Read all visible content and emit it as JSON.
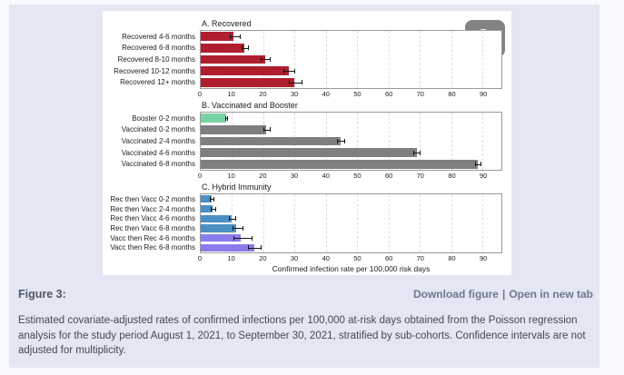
{
  "figure": {
    "label": "Figure 3:",
    "actions": {
      "download": "Download figure",
      "separator": "|",
      "open": "Open in new tab"
    },
    "caption": "Estimated covariate-adjusted rates of confirmed infections per 100,000 at-risk days obtained from the Poisson regression analysis for the study period August 1, 2021, to September 30, 2021, stratified by sub-cohorts. Confidence intervals are not adjusted for multiplicity.",
    "zoom_button_icon": "magnifier-plus-icon"
  },
  "colors": {
    "page_background": "#f8f9fd",
    "section_background": "#e4e7f3",
    "figure_background": "#ffffff",
    "recovered_red": "#b01e2e",
    "vaccinated_gray": "#7f7f7f",
    "booster_green": "#79d2a2",
    "rec_then_vacc_blue": "#4a90c4",
    "vacc_then_rec_purple": "#8b7cec",
    "error_bar": "#151515",
    "link_text": "#6d7890"
  },
  "chart_data": [
    {
      "type": "bar",
      "orientation": "horizontal",
      "title": "A. Recovered",
      "xlabel": "",
      "xlim": [
        0,
        96
      ],
      "xticks": [
        0,
        10,
        20,
        30,
        40,
        50,
        60,
        70,
        80,
        90
      ],
      "grid": "vertical-dashed",
      "categories": [
        "Recovered 4-6 months",
        "Recovered 6-8 months",
        "Recovered 8-10 months",
        "Recovered 10-12 months",
        "Recovered 12+ months"
      ],
      "values": [
        10.5,
        14.0,
        20.5,
        28.0,
        30.0
      ],
      "ci_low": [
        9.2,
        13.0,
        19.0,
        26.5,
        28.2
      ],
      "ci_high": [
        12.9,
        15.5,
        22.4,
        30.2,
        32.4
      ],
      "bar_colors": [
        "#b01e2e",
        "#b01e2e",
        "#b01e2e",
        "#b01e2e",
        "#b01e2e"
      ]
    },
    {
      "type": "bar",
      "orientation": "horizontal",
      "title": "B. Vaccinated and Booster",
      "xlabel": "",
      "xlim": [
        0,
        96
      ],
      "xticks": [
        0,
        10,
        20,
        30,
        40,
        50,
        60,
        70,
        80,
        90
      ],
      "grid": "vertical-dashed",
      "categories": [
        "Booster 0-2 months",
        "Vaccinated 0-2 months",
        "Vaccinated 2-4 months",
        "Vaccinated 4-6 months",
        "Vaccinated 6-8 months"
      ],
      "values": [
        8.1,
        21.0,
        44.8,
        69.0,
        88.5
      ],
      "ci_low": [
        7.7,
        20.0,
        43.5,
        67.9,
        87.5
      ],
      "ci_high": [
        8.6,
        22.3,
        46.2,
        70.2,
        89.6
      ],
      "bar_colors": [
        "#79d2a2",
        "#7f7f7f",
        "#7f7f7f",
        "#7f7f7f",
        "#7f7f7f"
      ]
    },
    {
      "type": "bar",
      "orientation": "horizontal",
      "title": "C. Hybrid Immunity",
      "xlabel": "Confirmed infection rate per 100,000 risk days",
      "xlim": [
        0,
        96
      ],
      "xticks": [
        0,
        10,
        20,
        30,
        40,
        50,
        60,
        70,
        80,
        90
      ],
      "grid": "vertical-dashed",
      "categories": [
        "Rec then Vacc 0-2 months",
        "Rec then Vacc 2-4 months",
        "Rec then Vacc 4-6 months",
        "Rec then Vacc 6-8 months",
        "Vacc then Rec 4-6 months",
        "Vacc then Rec 6-8 months"
      ],
      "values": [
        3.4,
        3.9,
        10.0,
        11.3,
        12.9,
        17.2
      ],
      "ci_low": [
        2.9,
        3.3,
        9.1,
        10.2,
        10.4,
        15.1
      ],
      "ci_high": [
        4.3,
        5.0,
        11.4,
        13.6,
        16.4,
        19.5
      ],
      "bar_colors": [
        "#4a90c4",
        "#4a90c4",
        "#4a90c4",
        "#4a90c4",
        "#8b7cec",
        "#8b7cec"
      ]
    }
  ]
}
